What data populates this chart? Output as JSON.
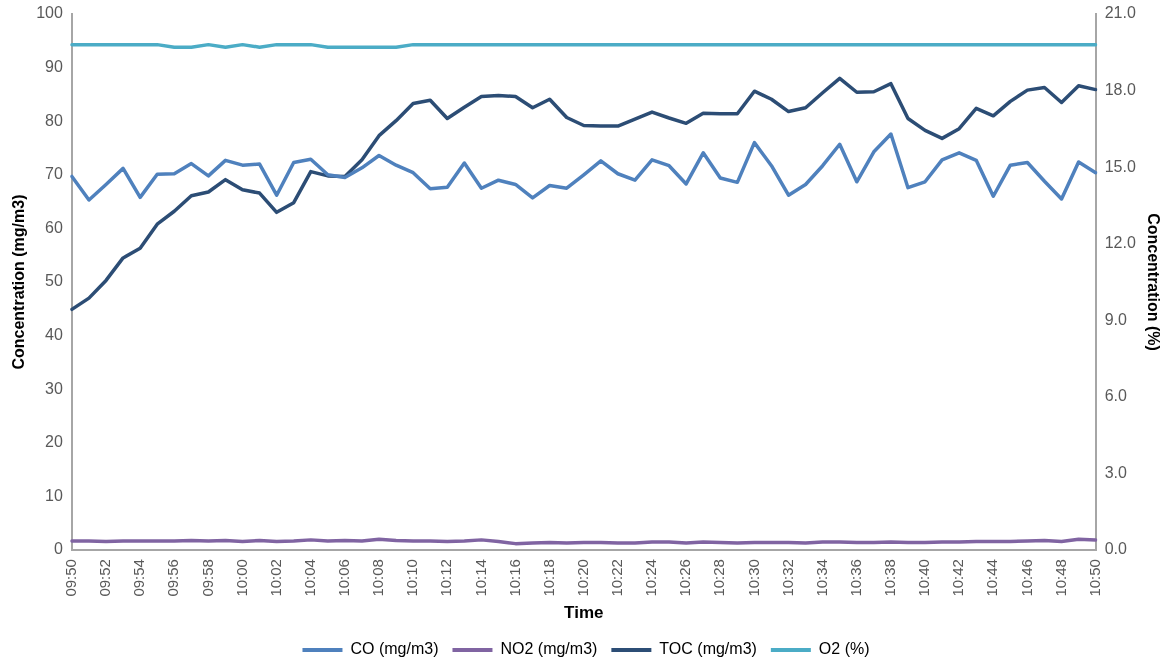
{
  "chart_data": {
    "type": "line",
    "xlabel": "Time",
    "ylabel": "Concentration (mg/m3)",
    "y2label": "Concentration (%)",
    "categories": [
      "09:50",
      null,
      "09:52",
      null,
      "09:54",
      null,
      "09:56",
      null,
      "09:58",
      null,
      "10:00",
      null,
      "10:02",
      null,
      "10:04",
      null,
      "10:06",
      null,
      "10:08",
      null,
      "10:10",
      null,
      "10:12",
      null,
      "10:14",
      null,
      "10:16",
      null,
      "10:18",
      null,
      "10:20",
      null,
      "10:22",
      null,
      "10:24",
      null,
      "10:26",
      null,
      "10:28",
      null,
      "10:30",
      null,
      "10:32",
      null,
      "10:34",
      null,
      "10:36",
      null,
      "10:38",
      null,
      "10:40",
      null,
      "10:42",
      null,
      "10:44",
      null,
      "10:46",
      null,
      "10:48",
      null,
      "10:50"
    ],
    "ylim": [
      0,
      100
    ],
    "yticks": [
      0,
      10,
      20,
      30,
      40,
      50,
      60,
      70,
      80,
      90,
      100
    ],
    "y2lim": [
      0,
      21
    ],
    "y2ticks": [
      {
        "value": 0,
        "label": "0.0"
      },
      {
        "value": 3,
        "label": "3.0"
      },
      {
        "value": 6,
        "label": "6.0"
      },
      {
        "value": 9,
        "label": "9.0"
      },
      {
        "value": 12,
        "label": "12.0"
      },
      {
        "value": 15,
        "label": "15.0"
      },
      {
        "value": 18,
        "label": "18.0"
      },
      {
        "value": 21,
        "label": "21.0"
      }
    ],
    "grid": false,
    "legend": "bottom",
    "marker": "none",
    "line_style": "solid",
    "series": [
      {
        "name": "CO (mg/m3)",
        "color": "#4f81bd",
        "values": [
          69.7,
          65.3,
          68.2,
          71.2,
          65.8,
          70.1,
          70.2,
          72.1,
          69.8,
          72.7,
          71.8,
          72.0,
          66.2,
          72.3,
          72.9,
          70.0,
          69.5,
          71.3,
          73.6,
          71.8,
          70.4,
          67.4,
          67.7,
          72.2,
          67.5,
          69.0,
          68.2,
          65.7,
          68.0,
          67.5,
          70.0,
          72.6,
          70.2,
          69.0,
          72.8,
          71.7,
          68.3,
          74.1,
          69.4,
          68.6,
          76.0,
          71.7,
          66.2,
          68.2,
          71.7,
          75.7,
          68.7,
          74.3,
          77.6,
          67.6,
          68.7,
          72.8,
          74.1,
          72.7,
          66.0,
          71.8,
          72.3,
          68.8,
          65.5,
          72.4,
          70.4
        ]
      },
      {
        "name": "NO2 (mg/m3)",
        "color": "#8064a2",
        "values": [
          1.7,
          1.7,
          1.6,
          1.7,
          1.7,
          1.7,
          1.7,
          1.8,
          1.7,
          1.8,
          1.6,
          1.8,
          1.6,
          1.7,
          1.9,
          1.7,
          1.8,
          1.7,
          2.0,
          1.8,
          1.7,
          1.7,
          1.6,
          1.7,
          1.9,
          1.6,
          1.2,
          1.3,
          1.4,
          1.3,
          1.4,
          1.4,
          1.3,
          1.3,
          1.5,
          1.5,
          1.3,
          1.5,
          1.4,
          1.3,
          1.4,
          1.4,
          1.4,
          1.3,
          1.5,
          1.5,
          1.4,
          1.4,
          1.5,
          1.4,
          1.4,
          1.5,
          1.5,
          1.6,
          1.6,
          1.6,
          1.7,
          1.8,
          1.6,
          2.0,
          1.9
        ]
      },
      {
        "name": "TOC (mg/m3)",
        "color": "#2c4d75",
        "values": [
          44.9,
          47.0,
          50.3,
          54.5,
          56.3,
          60.8,
          63.2,
          66.1,
          66.8,
          69.1,
          67.2,
          66.6,
          63.0,
          64.8,
          70.6,
          69.8,
          69.7,
          72.8,
          77.3,
          80.1,
          83.3,
          83.9,
          80.5,
          82.6,
          84.6,
          84.8,
          84.6,
          82.5,
          84.1,
          80.7,
          79.2,
          79.1,
          79.1,
          80.4,
          81.7,
          80.6,
          79.6,
          81.5,
          81.4,
          81.4,
          85.6,
          84.1,
          81.8,
          82.5,
          85.3,
          88.0,
          85.4,
          85.5,
          87.0,
          80.5,
          78.3,
          76.8,
          78.6,
          82.4,
          81.0,
          83.7,
          85.8,
          86.3,
          83.5,
          86.6,
          85.9
        ]
      },
      {
        "name": "O2 (%)",
        "color": "#4bacc6",
        "axis": "y2",
        "values": [
          19.8,
          19.8,
          19.8,
          19.8,
          19.8,
          19.8,
          19.7,
          19.7,
          19.8,
          19.7,
          19.8,
          19.7,
          19.8,
          19.8,
          19.8,
          19.7,
          19.7,
          19.7,
          19.7,
          19.7,
          19.8,
          19.8,
          19.8,
          19.8,
          19.8,
          19.8,
          19.8,
          19.8,
          19.8,
          19.8,
          19.8,
          19.8,
          19.8,
          19.8,
          19.8,
          19.8,
          19.8,
          19.8,
          19.8,
          19.8,
          19.8,
          19.8,
          19.8,
          19.8,
          19.8,
          19.8,
          19.8,
          19.8,
          19.8,
          19.8,
          19.8,
          19.8,
          19.8,
          19.8,
          19.8,
          19.8,
          19.8,
          19.8,
          19.8,
          19.8,
          19.8
        ]
      }
    ]
  }
}
